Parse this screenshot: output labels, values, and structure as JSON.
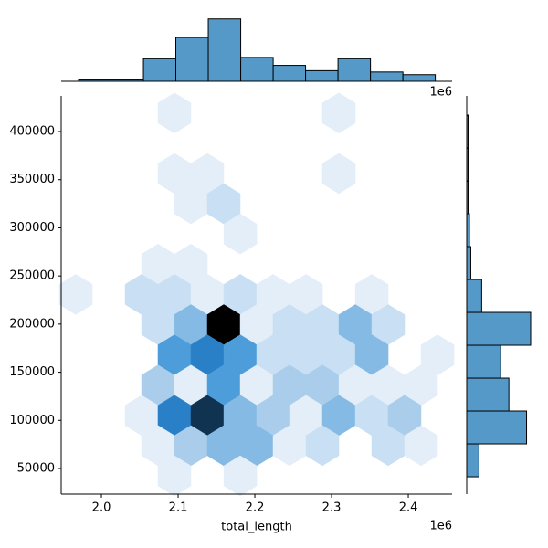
{
  "chart_data": [
    {
      "type": "hexbin",
      "x_label": "total_length",
      "x_offset_label": "1e6",
      "xlim": [
        1947600,
        2457100
      ],
      "ylim": [
        23440,
        437000
      ],
      "xticks": [
        {
          "value": 2000000,
          "label": "2.0"
        },
        {
          "value": 2100000,
          "label": "2.1"
        },
        {
          "value": 2200000,
          "label": "2.2"
        },
        {
          "value": 2300000,
          "label": "2.3"
        },
        {
          "value": 2400000,
          "label": "2.4"
        }
      ],
      "yticks": [
        50000,
        100000,
        150000,
        200000,
        250000,
        300000,
        350000,
        400000
      ],
      "colors": [
        "#e3eef8",
        "#c9dff3",
        "#a9cdea",
        "#84bae4",
        "#4c9dd9",
        "#2a80c6",
        "#0f3350",
        "#000000"
      ],
      "x": [
        2095200,
        2309500,
        2095200,
        2138100,
        2309500,
        2116700,
        2159500,
        2181000,
        2073800,
        2116700,
        1966700,
        2052400,
        2095200,
        2138100,
        2181000,
        2223800,
        2266700,
        2352400,
        2073800,
        2116700,
        2159500,
        2202400,
        2245200,
        2288100,
        2331000,
        2373800,
        2095200,
        2138100,
        2181000,
        2223800,
        2266700,
        2309500,
        2352400,
        2438100,
        2073800,
        2116700,
        2159500,
        2202400,
        2245200,
        2288100,
        2331000,
        2373800,
        2416700,
        2052400,
        2095200,
        2138100,
        2181000,
        2223800,
        2266700,
        2309500,
        2352400,
        2395200,
        2073800,
        2116700,
        2159500,
        2202400,
        2245200,
        2288100,
        2373800,
        2416700,
        2095200,
        2181000
      ],
      "y": [
        419200,
        419200,
        356400,
        356400,
        356400,
        325000,
        325000,
        293600,
        262200,
        262200,
        230800,
        230800,
        230800,
        230800,
        230800,
        230800,
        230800,
        230800,
        199400,
        199400,
        199400,
        199400,
        199400,
        199400,
        199400,
        199400,
        168000,
        168000,
        168000,
        168000,
        168000,
        168000,
        168000,
        168000,
        136600,
        136600,
        136600,
        136600,
        136600,
        136600,
        136600,
        136600,
        136600,
        105200,
        105200,
        105200,
        105200,
        105200,
        105200,
        105200,
        105200,
        105200,
        73800,
        73800,
        73800,
        73800,
        73800,
        73800,
        73800,
        73800,
        42400,
        42400
      ],
      "values": [
        1,
        1,
        1,
        1,
        1,
        1,
        2,
        1,
        1,
        1,
        1,
        2,
        2,
        1,
        2,
        1,
        1,
        1,
        2,
        4,
        8,
        1,
        2,
        2,
        4,
        2,
        5,
        6,
        5,
        2,
        2,
        2,
        4,
        1,
        3,
        1,
        5,
        1,
        3,
        3,
        1,
        1,
        1,
        1,
        6,
        7,
        4,
        3,
        1,
        4,
        2,
        3,
        1,
        3,
        4,
        4,
        1,
        2,
        2,
        1,
        1,
        1
      ]
    },
    {
      "type": "histogram",
      "offset_label": "1e6",
      "color": "#5499c7",
      "bins": [
        1970200,
        2012500,
        2054800,
        2097000,
        2139300,
        2181600,
        2223900,
        2266100,
        2308400,
        2350700,
        2393000,
        2435200
      ],
      "values": [
        1,
        1,
        17,
        33,
        47,
        18,
        12,
        8,
        17,
        7,
        5
      ]
    },
    {
      "type": "histogram-horizontal",
      "color": "#5499c7",
      "bins": [
        41430,
        75590,
        109740,
        143880,
        178030,
        212180,
        246330,
        280480,
        314630,
        348780,
        382930,
        417070
      ],
      "values": [
        9,
        44,
        31,
        25,
        47,
        11,
        3,
        2,
        1,
        1,
        1
      ]
    }
  ]
}
